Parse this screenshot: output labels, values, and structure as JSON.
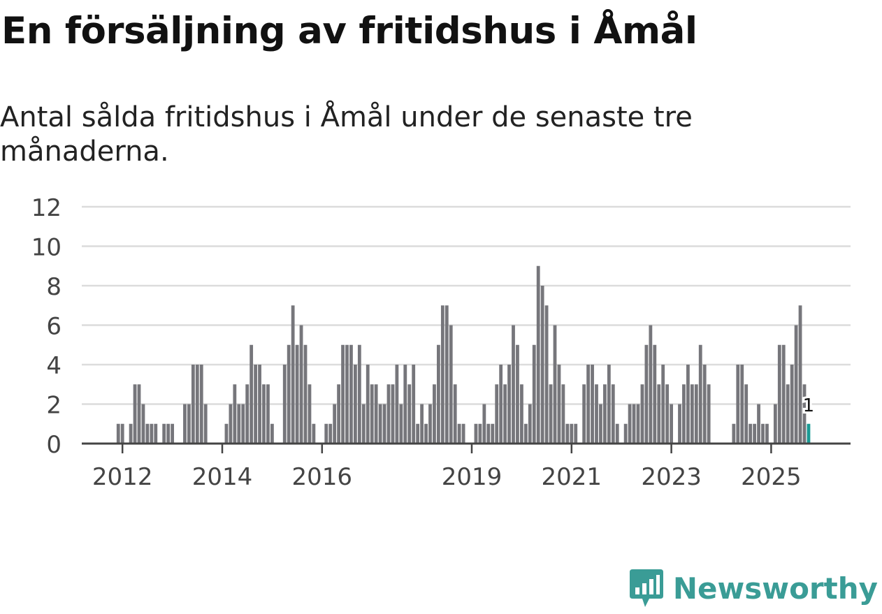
{
  "title": "En försäljning av fritidshus i Åmål",
  "subtitle": "Antal sålda fritidshus i Åmål under de senaste tre månaderna.",
  "brand": {
    "name": "Newsworthy"
  },
  "colors": {
    "bar": "#76767b",
    "highlight": "#1a9a94",
    "grid": "#dcdcdc",
    "axis": "#444444",
    "text": "#444444",
    "brand": "#3a9c96"
  },
  "chart_data": {
    "type": "bar",
    "title": "En försäljning av fritidshus i Åmål",
    "subtitle": "Antal sålda fritidshus i Åmål under de senaste tre månaderna.",
    "xlabel": "",
    "ylabel": "",
    "ylim": [
      0,
      12
    ],
    "y_ticks": [
      "0",
      "2",
      "4",
      "6",
      "8",
      "10",
      "12"
    ],
    "x_ticks": [
      {
        "label": "2012",
        "year": 2012
      },
      {
        "label": "2014",
        "year": 2014
      },
      {
        "label": "2016",
        "year": 2016
      },
      {
        "label": "2019",
        "year": 2019
      },
      {
        "label": "2021",
        "year": 2021
      },
      {
        "label": "2023",
        "year": 2023
      },
      {
        "label": "2025",
        "year": 2025
      }
    ],
    "start": {
      "year": 2011,
      "month": 9
    },
    "highlight": {
      "label": "1",
      "value": 1
    },
    "values": [
      0,
      0,
      0,
      1,
      1,
      0,
      1,
      3,
      3,
      2,
      1,
      1,
      1,
      0,
      1,
      1,
      1,
      0,
      0,
      2,
      2,
      4,
      4,
      4,
      2,
      0,
      0,
      0,
      0,
      1,
      2,
      3,
      2,
      2,
      3,
      5,
      4,
      4,
      3,
      3,
      1,
      0,
      0,
      4,
      5,
      7,
      5,
      6,
      5,
      3,
      1,
      0,
      0,
      1,
      1,
      2,
      3,
      5,
      5,
      5,
      4,
      5,
      2,
      4,
      3,
      3,
      2,
      2,
      3,
      3,
      4,
      2,
      4,
      3,
      4,
      1,
      2,
      1,
      2,
      3,
      5,
      7,
      7,
      6,
      3,
      1,
      1,
      0,
      0,
      1,
      1,
      2,
      1,
      1,
      3,
      4,
      3,
      4,
      6,
      5,
      3,
      1,
      2,
      5,
      9,
      8,
      7,
      3,
      6,
      4,
      3,
      1,
      1,
      1,
      0,
      3,
      4,
      4,
      3,
      2,
      3,
      4,
      3,
      1,
      0,
      1,
      2,
      2,
      2,
      3,
      5,
      6,
      5,
      3,
      4,
      3,
      2,
      0,
      2,
      3,
      4,
      3,
      3,
      5,
      4,
      3,
      0,
      0,
      0,
      0,
      0,
      1,
      4,
      4,
      3,
      1,
      1,
      2,
      1,
      1,
      0,
      2,
      5,
      5,
      3,
      4,
      6,
      7,
      3,
      1
    ]
  }
}
